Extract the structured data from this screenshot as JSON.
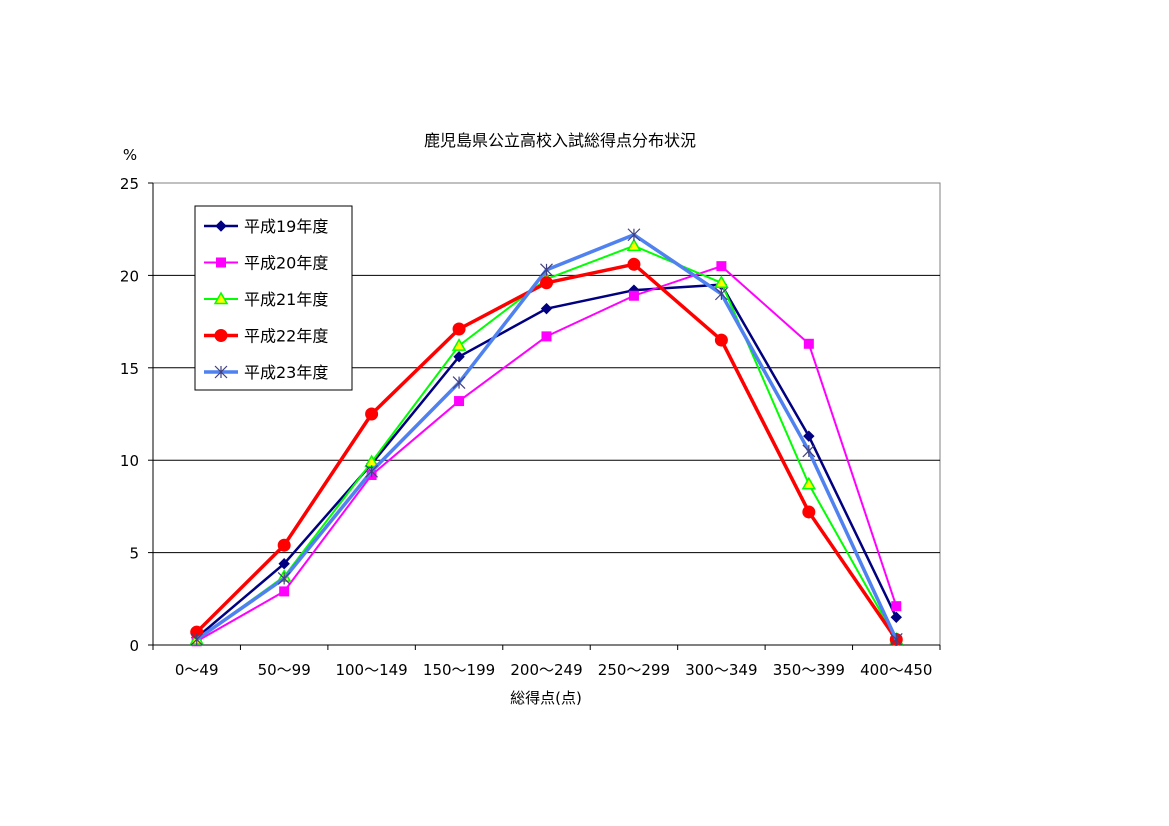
{
  "chart_data": {
    "type": "line",
    "title": "鹿児島県公立高校入試総得点分布状況",
    "xlabel": "総得点(点)",
    "ylabel": "%",
    "categories": [
      "0〜49",
      "50〜99",
      "100〜149",
      "150〜199",
      "200〜249",
      "250〜299",
      "300〜349",
      "350〜399",
      "400〜450"
    ],
    "ylim": [
      0,
      25
    ],
    "yticks": [
      0,
      5,
      10,
      15,
      20,
      25
    ],
    "grid": "horizontal",
    "legend_position": "top-left",
    "series": [
      {
        "name": "平成19年度",
        "color": "#000080",
        "marker": "diamond",
        "width": 2.5,
        "values": [
          0.4,
          4.4,
          9.8,
          15.6,
          18.2,
          19.2,
          19.5,
          11.3,
          1.5
        ]
      },
      {
        "name": "平成20年度",
        "color": "#ff00ff",
        "marker": "square",
        "width": 2.0,
        "values": [
          0.2,
          2.9,
          9.2,
          13.2,
          16.7,
          18.9,
          20.5,
          16.3,
          2.1
        ]
      },
      {
        "name": "平成21年度",
        "color": "#00ff00",
        "marker": "triangle",
        "width": 2.0,
        "values": [
          0.3,
          3.7,
          9.9,
          16.2,
          19.8,
          21.6,
          19.6,
          8.7,
          0.3
        ]
      },
      {
        "name": "平成22年度",
        "color": "#ff0000",
        "marker": "circle",
        "width": 3.5,
        "values": [
          0.7,
          5.4,
          12.5,
          17.1,
          19.6,
          20.6,
          16.5,
          7.2,
          0.3
        ]
      },
      {
        "name": "平成23年度",
        "color": "#4f81f0",
        "marker": "star",
        "width": 3.5,
        "values": [
          0.3,
          3.6,
          9.4,
          14.2,
          20.3,
          22.2,
          19.0,
          10.5,
          0.3
        ]
      }
    ]
  }
}
